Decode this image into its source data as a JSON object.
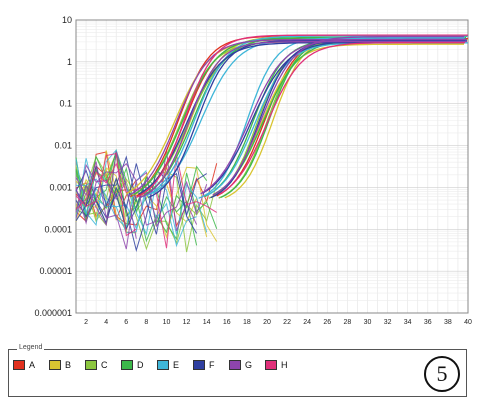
{
  "chart_data": {
    "type": "line",
    "y_scale": "log",
    "xlim": [
      1,
      40
    ],
    "ylim": [
      1e-06,
      10
    ],
    "x_ticks": [
      2,
      4,
      6,
      8,
      10,
      12,
      14,
      16,
      18,
      20,
      22,
      24,
      26,
      28,
      30,
      32,
      34,
      36,
      38,
      40
    ],
    "y_ticks": [
      "10",
      "1",
      "0.1",
      "0.01",
      "0.001",
      "0.0001",
      "0.00001",
      "0.000001"
    ],
    "grid": true,
    "legend_position": "bottom",
    "groups": [
      {
        "name": "A",
        "color": "#e0301e",
        "early_ct": [
          9.0,
          9.6
        ],
        "late_ct": [
          17.6
        ]
      },
      {
        "name": "B",
        "color": "#d9c431",
        "early_ct": [
          8.6,
          10.2
        ],
        "late_ct": [
          17.2,
          18.4
        ]
      },
      {
        "name": "C",
        "color": "#8cc63f",
        "early_ct": [
          9.2,
          10.0
        ],
        "late_ct": [
          16.8,
          17.8
        ]
      },
      {
        "name": "D",
        "color": "#3cb84a",
        "early_ct": [
          9.4,
          10.4
        ],
        "late_ct": [
          16.4,
          17.4,
          18.0
        ]
      },
      {
        "name": "E",
        "color": "#3fb6d8",
        "early_ct": [
          10.6,
          11.2
        ],
        "late_ct": [
          15.8,
          16.6
        ]
      },
      {
        "name": "F",
        "color": "#2f3fa0",
        "early_ct": [
          9.8,
          10.8
        ],
        "late_ct": [
          16.2,
          17.0
        ]
      },
      {
        "name": "G",
        "color": "#8e44ad",
        "early_ct": [
          8.8,
          10.0
        ],
        "late_ct": [
          16.0,
          17.2
        ]
      },
      {
        "name": "H",
        "color": "#e0307a",
        "early_ct": [
          9.6
        ],
        "late_ct": [
          17.8
        ]
      }
    ],
    "plateau": 3.5
  },
  "legend": {
    "title": "Legend",
    "items": [
      {
        "label": "A",
        "color": "#e0301e"
      },
      {
        "label": "B",
        "color": "#d9c431"
      },
      {
        "label": "C",
        "color": "#8cc63f"
      },
      {
        "label": "D",
        "color": "#3cb84a"
      },
      {
        "label": "E",
        "color": "#3fb6d8"
      },
      {
        "label": "F",
        "color": "#2f3fa0"
      },
      {
        "label": "G",
        "color": "#8e44ad"
      },
      {
        "label": "H",
        "color": "#e0307a"
      }
    ]
  },
  "panel_number": "5"
}
